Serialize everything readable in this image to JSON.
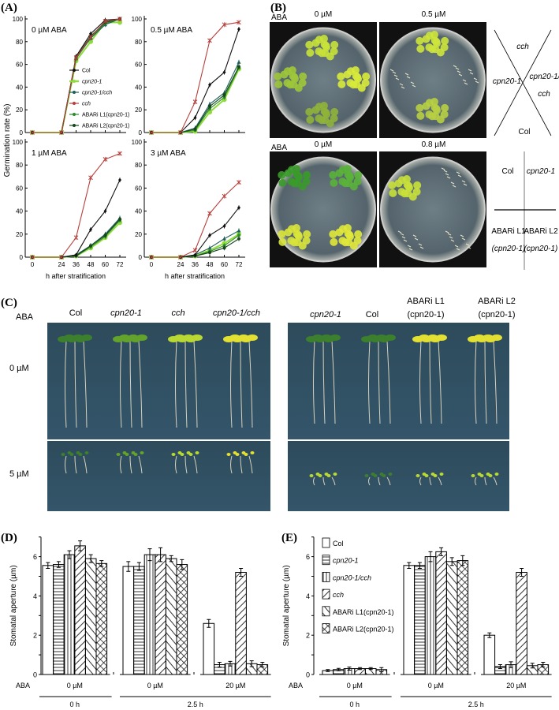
{
  "panels": {
    "A": "(A)",
    "B": "(B)",
    "C": "(C)",
    "D": "(D)",
    "E": "(E)"
  },
  "genotypes": [
    "Col",
    "cpn20-1",
    "cpn20-1/cch",
    "cch",
    "ABARi L1(cpn20-1)",
    "ABARi L2(cpn20-1)"
  ],
  "panel_a": {
    "ylabel": "Germination rate (%)",
    "xlabel": "h after stratification"
  },
  "panel_b": {
    "aba_label": "ABA",
    "top_row": [
      "0 µM",
      "0.5 µM"
    ],
    "bottom_row": [
      "0 µM",
      "0.8 µM"
    ],
    "cross_diagram": {
      "top": "cch",
      "left": "cpn20-1",
      "right_1": "cpn20-1/",
      "right_2": "cch",
      "bottom": "Col"
    },
    "grid_diagram": {
      "tl": "Col",
      "tr": "cpn20-1",
      "bl_1": "ABARi L1",
      "bl_2": "(cpn20-1)",
      "br_1": "ABARi L2",
      "br_2": "(cpn20-1)"
    }
  },
  "panel_c": {
    "aba_label": "ABA",
    "left_columns": [
      "Col",
      "cpn20-1",
      "cch",
      "cpn20-1/cch"
    ],
    "right_columns": [
      [
        "cpn20-1",
        ""
      ],
      [
        "Col",
        ""
      ],
      [
        "ABARi L1",
        "(cpn20-1)"
      ],
      [
        "ABARi L2",
        "(cpn20-1)"
      ]
    ],
    "rows": [
      "0 µM",
      "5 µM"
    ]
  },
  "series_colors": [
    "#111111",
    "#8fdc3c",
    "#1d5f5c",
    "#b5403c",
    "#2d8a2d",
    "#17471b"
  ],
  "chart_data": [
    {
      "type": "line",
      "title": "0 µM ABA",
      "xlabel": "",
      "ylabel": "Germination rate (%)",
      "x": [
        0,
        24,
        36,
        48,
        60,
        72
      ],
      "xlim": [
        0,
        72
      ],
      "ylim": [
        0,
        100
      ],
      "yticks": [
        0,
        20,
        40,
        60,
        80,
        100
      ],
      "xticks": [
        0,
        24,
        36,
        48,
        60,
        72
      ],
      "legend": "center-right",
      "series": [
        {
          "name": "Col",
          "values": [
            0,
            0,
            67,
            87,
            99,
            100
          ]
        },
        {
          "name": "cpn20-1",
          "values": [
            0,
            0,
            63,
            80,
            97,
            97
          ]
        },
        {
          "name": "cpn20-1/cch",
          "values": [
            0,
            0,
            65,
            83,
            95,
            100
          ]
        },
        {
          "name": "cch",
          "values": [
            0,
            0,
            66,
            84,
            98,
            100
          ]
        },
        {
          "name": "ABARi L1(cpn20-1)",
          "values": [
            0,
            0,
            65,
            84,
            96,
            100
          ]
        },
        {
          "name": "ABARi L2(cpn20-1)",
          "values": [
            0,
            0,
            66,
            85,
            97,
            100
          ]
        }
      ]
    },
    {
      "type": "line",
      "title": "0.5 µM ABA",
      "xlabel": "",
      "ylabel": "",
      "x": [
        0,
        24,
        36,
        48,
        60,
        72
      ],
      "xlim": [
        0,
        72
      ],
      "ylim": [
        0,
        100
      ],
      "yticks": [
        0,
        20,
        40,
        60,
        80,
        100
      ],
      "xticks": [
        0,
        24,
        36,
        48,
        60,
        72
      ],
      "series": [
        {
          "name": "Col",
          "values": [
            0,
            0,
            13,
            42,
            53,
            91
          ]
        },
        {
          "name": "cpn20-1",
          "values": [
            0,
            0,
            1,
            18,
            29,
            56
          ]
        },
        {
          "name": "cpn20-1/cch",
          "values": [
            0,
            0,
            4,
            25,
            35,
            62
          ]
        },
        {
          "name": "cch",
          "values": [
            0,
            0,
            27,
            81,
            95,
            97
          ]
        },
        {
          "name": "ABARi L1(cpn20-1)",
          "values": [
            0,
            0,
            2,
            21,
            31,
            57
          ]
        },
        {
          "name": "ABARi L2(cpn20-1)",
          "values": [
            0,
            0,
            3,
            23,
            33,
            58
          ]
        }
      ]
    },
    {
      "type": "line",
      "title": "1 µM ABA",
      "xlabel": "h after stratification",
      "ylabel": "",
      "x": [
        0,
        24,
        36,
        48,
        60,
        72
      ],
      "xlim": [
        0,
        72
      ],
      "ylim": [
        0,
        100
      ],
      "yticks": [
        0,
        20,
        40,
        60,
        80,
        100
      ],
      "xticks": [
        0,
        24,
        36,
        48,
        60,
        72
      ],
      "series": [
        {
          "name": "Col",
          "values": [
            0,
            0,
            2,
            24,
            40,
            67
          ]
        },
        {
          "name": "cpn20-1",
          "values": [
            0,
            0,
            1,
            8,
            17,
            30
          ]
        },
        {
          "name": "cpn20-1/cch",
          "values": [
            0,
            0,
            2,
            10,
            20,
            34
          ]
        },
        {
          "name": "cch",
          "values": [
            0,
            0,
            17,
            69,
            85,
            90
          ]
        },
        {
          "name": "ABARi L1(cpn20-1)",
          "values": [
            0,
            0,
            1,
            9,
            18,
            32
          ]
        },
        {
          "name": "ABARi L2(cpn20-1)",
          "values": [
            0,
            0,
            1,
            10,
            19,
            33
          ]
        }
      ]
    },
    {
      "type": "line",
      "title": "3 µM ABA",
      "xlabel": "h after stratification",
      "ylabel": "",
      "x": [
        0,
        24,
        36,
        48,
        60,
        72
      ],
      "xlim": [
        0,
        72
      ],
      "ylim": [
        0,
        100
      ],
      "yticks": [
        0,
        20,
        40,
        60,
        80,
        100
      ],
      "xticks": [
        0,
        24,
        36,
        48,
        60,
        72
      ],
      "series": [
        {
          "name": "Col",
          "values": [
            0,
            0,
            2,
            19,
            27,
            43
          ]
        },
        {
          "name": "cpn20-1",
          "values": [
            0,
            0,
            1,
            6,
            12,
            20
          ]
        },
        {
          "name": "cpn20-1/cch",
          "values": [
            0,
            0,
            2,
            8,
            16,
            23
          ]
        },
        {
          "name": "cch",
          "values": [
            0,
            0,
            6,
            38,
            53,
            65
          ]
        },
        {
          "name": "ABARi L1(cpn20-1)",
          "values": [
            0,
            0,
            1,
            5,
            10,
            19
          ]
        },
        {
          "name": "ABARi L2(cpn20-1)",
          "values": [
            0,
            0,
            1,
            4,
            8,
            16
          ]
        }
      ]
    },
    {
      "type": "bar",
      "panel": "D",
      "ylabel": "Stomatal aperture (µm)",
      "ylim": [
        0,
        7
      ],
      "yticks": [
        0,
        2,
        4,
        6
      ],
      "row_label": "ABA",
      "groups": [
        {
          "aba": "0 µM",
          "time": "0 h",
          "values": [
            5.55,
            5.6,
            6.1,
            6.55,
            5.9,
            5.65
          ],
          "errors": [
            0.15,
            0.15,
            0.2,
            0.25,
            0.2,
            0.15
          ]
        },
        {
          "aba": "0 µM",
          "time": "2.5 h",
          "values": [
            5.5,
            5.5,
            6.1,
            6.1,
            5.9,
            5.6
          ],
          "errors": [
            0.25,
            0.2,
            0.3,
            0.35,
            0.15,
            0.25
          ]
        },
        {
          "aba": "20 µM",
          "time": "2.5 h",
          "values": [
            2.6,
            0.5,
            0.55,
            5.2,
            0.55,
            0.5
          ],
          "errors": [
            0.2,
            0.12,
            0.12,
            0.2,
            0.15,
            0.12
          ]
        }
      ],
      "time_labels": [
        "0 h",
        "2.5 h"
      ],
      "series": [
        "Col",
        "cpn20-1",
        "cpn20-1/cch",
        "cch",
        "ABARi L1(cpn20-1)",
        "ABARi L2(cpn20-1)"
      ]
    },
    {
      "type": "bar",
      "panel": "E",
      "ylabel": "Stomatal aperture (µm)",
      "ylim": [
        0,
        7
      ],
      "yticks": [
        0,
        2,
        4,
        6
      ],
      "row_label": "ABA",
      "legend": "top-left",
      "groups": [
        {
          "aba": "0 µM",
          "time": "0 h",
          "values": [
            0.2,
            0.25,
            0.3,
            0.3,
            0.3,
            0.25
          ],
          "errors": [
            0.05,
            0.06,
            0.08,
            0.05,
            0.05,
            0.1
          ]
        },
        {
          "aba": "0 µM",
          "time": "2.5 h",
          "values": [
            5.55,
            5.55,
            6.0,
            6.25,
            5.75,
            5.8
          ],
          "errors": [
            0.15,
            0.15,
            0.25,
            0.2,
            0.2,
            0.25
          ]
        },
        {
          "aba": "20 µM",
          "time": "2.5 h",
          "values": [
            2.0,
            0.4,
            0.5,
            5.2,
            0.45,
            0.5
          ],
          "errors": [
            0.12,
            0.1,
            0.15,
            0.2,
            0.12,
            0.12
          ]
        }
      ],
      "time_labels": [
        "0 h",
        "2.5 h"
      ],
      "series": [
        "Col",
        "cpn20-1",
        "cpn20-1/cch",
        "cch",
        "ABARi L1(cpn20-1)",
        "ABARi L2(cpn20-1)"
      ]
    }
  ]
}
